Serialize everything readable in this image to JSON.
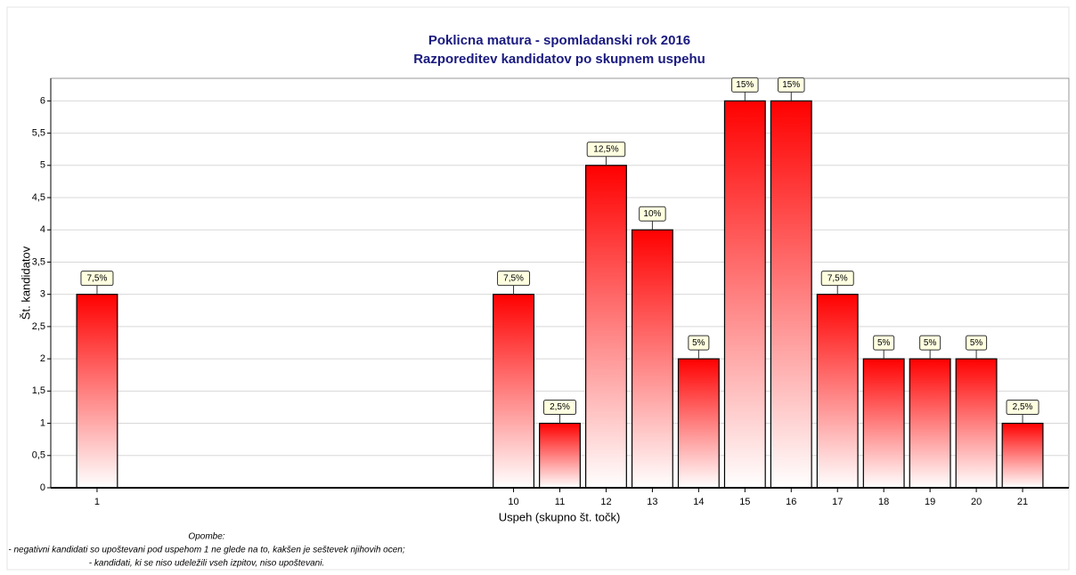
{
  "chart_data": {
    "type": "bar",
    "title": "Poklicna matura - spomladanski rok 2016",
    "subtitle": "Razporeditev kandidatov po skupnem uspehu",
    "x_label": "Uspeh (skupno št. točk)",
    "y_label": "Št. kandidatov",
    "x": [
      1,
      10,
      11,
      12,
      13,
      14,
      15,
      16,
      17,
      18,
      19,
      20,
      21
    ],
    "values": [
      3,
      3,
      1,
      5,
      4,
      2,
      6,
      6,
      3,
      2,
      2,
      2,
      1
    ],
    "shares": [
      7.5,
      7.5,
      2.5,
      12.5,
      10,
      5,
      15,
      15,
      7.5,
      5,
      5,
      5,
      2.5
    ],
    "share_labels": [
      "7,5%",
      "7,5%",
      "2,5%",
      "12,5%",
      "10%",
      "5%",
      "15%",
      "15%",
      "7,5%",
      "5%",
      "5%",
      "5%",
      "2,5%"
    ],
    "color": "#ff0000",
    "xlim": [
      0,
      22
    ],
    "xticks": [
      1,
      10,
      11,
      12,
      13,
      14,
      15,
      16,
      17,
      18,
      19,
      20,
      21
    ],
    "ylim": [
      0,
      6.35
    ],
    "yticks": [
      0,
      {
        "value": 0.5,
        "label": "0,5"
      },
      1,
      {
        "value": 1.5,
        "label": "1,5"
      },
      2,
      {
        "value": 2.5,
        "label": "2,5"
      },
      3,
      {
        "value": 3.5,
        "label": "3,5"
      },
      4,
      {
        "value": 4.5,
        "label": "4,5"
      },
      5,
      {
        "value": 5.5,
        "label": "5,5"
      },
      6
    ],
    "grid": true,
    "notes": [
      "Opombe:",
      "- negativni kandidati so upoštevani pod uspehom 1 ne glede na to, kakšen je seštevek njihovih ocen;",
      "- kandidati, ki se niso udeležili vseh izpitov, niso upoštevani."
    ]
  }
}
